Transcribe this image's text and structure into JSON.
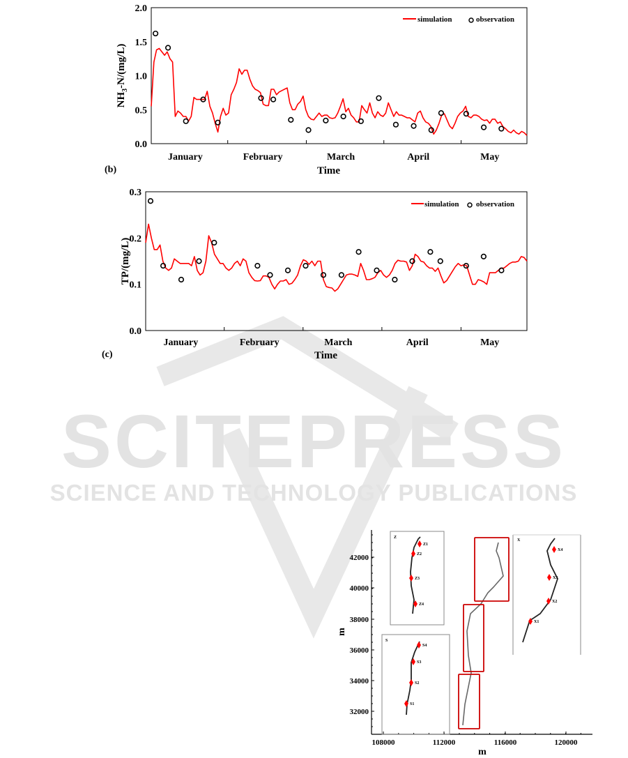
{
  "watermark": {
    "line1": "SCITEPRESS",
    "line2": "SCIENCE AND TECHNOLOGY PUBLICATIONS"
  },
  "chart_data": [
    {
      "type": "line",
      "panel_label": "(b)",
      "title": "",
      "xlabel": "Time",
      "ylabel": "NH3-N/(mg/L)",
      "ylabel_main": "NH",
      "ylabel_sub": "3",
      "ylabel_rest": "-N/(mg/L)",
      "ylim": [
        0,
        2.0
      ],
      "yticks": [
        "0.0",
        "0.5",
        "1.0",
        "1.5",
        "2.0"
      ],
      "xlim": [
        0,
        141
      ],
      "month_labels": [
        "January",
        "February",
        "March",
        "April",
        "May"
      ],
      "month_boundaries": [
        28.7,
        58.2,
        87.3,
        116.3
      ],
      "legend": {
        "simulation": "simulation",
        "observation": "observation",
        "placement": "top-right"
      },
      "series": [
        {
          "name": "simulation",
          "color": "#ff0000",
          "x_start": 0,
          "x_step": 1,
          "values": [
            0.55,
            1.2,
            1.38,
            1.4,
            1.35,
            1.3,
            1.35,
            1.25,
            1.2,
            0.4,
            0.48,
            0.45,
            0.4,
            0.4,
            0.33,
            0.4,
            0.68,
            0.65,
            0.65,
            0.65,
            0.65,
            0.77,
            0.55,
            0.45,
            0.3,
            0.17,
            0.4,
            0.52,
            0.42,
            0.45,
            0.72,
            0.8,
            0.9,
            1.1,
            1.02,
            1.08,
            1.08,
            0.95,
            0.85,
            0.8,
            0.78,
            0.75,
            0.58,
            0.56,
            0.56,
            0.8,
            0.8,
            0.72,
            0.76,
            0.78,
            0.8,
            0.82,
            0.6,
            0.5,
            0.5,
            0.58,
            0.62,
            0.7,
            0.5,
            0.4,
            0.36,
            0.35,
            0.4,
            0.45,
            0.4,
            0.42,
            0.42,
            0.38,
            0.37,
            0.38,
            0.45,
            0.55,
            0.66,
            0.47,
            0.52,
            0.42,
            0.38,
            0.32,
            0.32,
            0.56,
            0.5,
            0.45,
            0.6,
            0.45,
            0.38,
            0.47,
            0.42,
            0.4,
            0.45,
            0.6,
            0.5,
            0.4,
            0.47,
            0.42,
            0.42,
            0.4,
            0.38,
            0.38,
            0.35,
            0.32,
            0.45,
            0.48,
            0.38,
            0.32,
            0.3,
            0.25,
            0.14,
            0.2,
            0.3,
            0.42,
            0.44,
            0.35,
            0.26,
            0.22,
            0.3,
            0.4,
            0.45,
            0.48,
            0.55,
            0.4,
            0.38,
            0.42,
            0.42,
            0.4,
            0.36,
            0.34,
            0.35,
            0.3,
            0.36,
            0.36,
            0.3,
            0.32,
            0.25,
            0.22,
            0.18,
            0.16,
            0.2,
            0.16,
            0.14,
            0.18,
            0.16,
            0.12
          ]
        },
        {
          "name": "observation",
          "color": "#000000",
          "x": [
            1.6,
            6.3,
            13,
            19.5,
            25,
            41.2,
            45.8,
            52.4,
            59,
            65.5,
            72.1,
            78.7,
            85.4,
            91.8,
            98.5,
            105.1,
            108.8,
            118.2,
            124.8,
            131.4
          ],
          "y": [
            1.62,
            1.41,
            0.33,
            0.65,
            0.31,
            0.67,
            0.65,
            0.35,
            0.2,
            0.34,
            0.4,
            0.33,
            0.67,
            0.28,
            0.26,
            0.2,
            0.45,
            0.44,
            0.24,
            0.22
          ]
        }
      ]
    },
    {
      "type": "line",
      "panel_label": "(c)",
      "title": "",
      "xlabel": "Time",
      "ylabel": "TP/(mg/L)",
      "ylim": [
        0,
        0.3
      ],
      "yticks": [
        "0.0",
        "0.1",
        "0.2",
        "0.3"
      ],
      "xlim": [
        0,
        133
      ],
      "month_labels": [
        "January",
        "February",
        "March",
        "April",
        "May"
      ],
      "month_boundaries": [
        27.4,
        54.9,
        82.4,
        110
      ],
      "legend": {
        "simulation": "simulation",
        "observation": "observation",
        "placement": "top-right"
      },
      "series": [
        {
          "name": "simulation",
          "color": "#ff0000",
          "x_start": 0,
          "x_step": 1,
          "values": [
            0.19,
            0.23,
            0.2,
            0.175,
            0.175,
            0.185,
            0.15,
            0.135,
            0.13,
            0.135,
            0.155,
            0.15,
            0.145,
            0.145,
            0.145,
            0.145,
            0.14,
            0.16,
            0.13,
            0.12,
            0.125,
            0.15,
            0.205,
            0.19,
            0.165,
            0.155,
            0.145,
            0.145,
            0.135,
            0.13,
            0.135,
            0.145,
            0.15,
            0.14,
            0.155,
            0.15,
            0.125,
            0.115,
            0.108,
            0.107,
            0.108,
            0.118,
            0.118,
            0.115,
            0.1,
            0.09,
            0.1,
            0.107,
            0.107,
            0.11,
            0.1,
            0.102,
            0.11,
            0.12,
            0.14,
            0.153,
            0.15,
            0.143,
            0.15,
            0.14,
            0.15,
            0.15,
            0.11,
            0.095,
            0.093,
            0.092,
            0.085,
            0.09,
            0.1,
            0.11,
            0.12,
            0.122,
            0.122,
            0.12,
            0.117,
            0.145,
            0.13,
            0.11,
            0.11,
            0.112,
            0.115,
            0.125,
            0.13,
            0.12,
            0.115,
            0.12,
            0.13,
            0.145,
            0.152,
            0.15,
            0.15,
            0.148,
            0.13,
            0.14,
            0.165,
            0.16,
            0.15,
            0.148,
            0.14,
            0.135,
            0.135,
            0.128,
            0.135,
            0.118,
            0.103,
            0.108,
            0.118,
            0.128,
            0.138,
            0.145,
            0.14,
            0.142,
            0.14,
            0.12,
            0.1,
            0.1,
            0.11,
            0.108,
            0.105,
            0.1,
            0.125,
            0.125,
            0.125,
            0.13,
            0.135,
            0.135,
            0.14,
            0.145,
            0.148,
            0.148,
            0.15,
            0.16,
            0.158,
            0.15
          ]
        },
        {
          "name": "observation",
          "color": "#000000",
          "x": [
            1.7,
            6.1,
            12.4,
            18.6,
            23.9,
            39,
            43.4,
            49.6,
            55.8,
            62,
            68.3,
            74.3,
            80.6,
            86.9,
            93,
            99.3,
            102.8,
            111.8,
            117.9,
            124.1
          ],
          "y": [
            0.28,
            0.14,
            0.11,
            0.15,
            0.19,
            0.14,
            0.12,
            0.13,
            0.14,
            0.12,
            0.12,
            0.17,
            0.13,
            0.11,
            0.15,
            0.17,
            0.15,
            0.14,
            0.16,
            0.13
          ]
        }
      ]
    },
    {
      "type": "map",
      "xlabel": "m",
      "ylabel": "m",
      "xticks": [
        "108000",
        "112000",
        "116000",
        "120000"
      ],
      "yticks": [
        "32000",
        "34000",
        "36000",
        "38000",
        "40000",
        "42000"
      ],
      "insets": [
        {
          "name": "Z",
          "stations": [
            "Z1",
            "Z2",
            "Z3",
            "Z4"
          ]
        },
        {
          "name": "S",
          "stations": [
            "S1",
            "S2",
            "S3",
            "S4"
          ]
        },
        {
          "name": "X",
          "stations": [
            "X1",
            "X2",
            "X3",
            "X4"
          ]
        }
      ]
    }
  ]
}
